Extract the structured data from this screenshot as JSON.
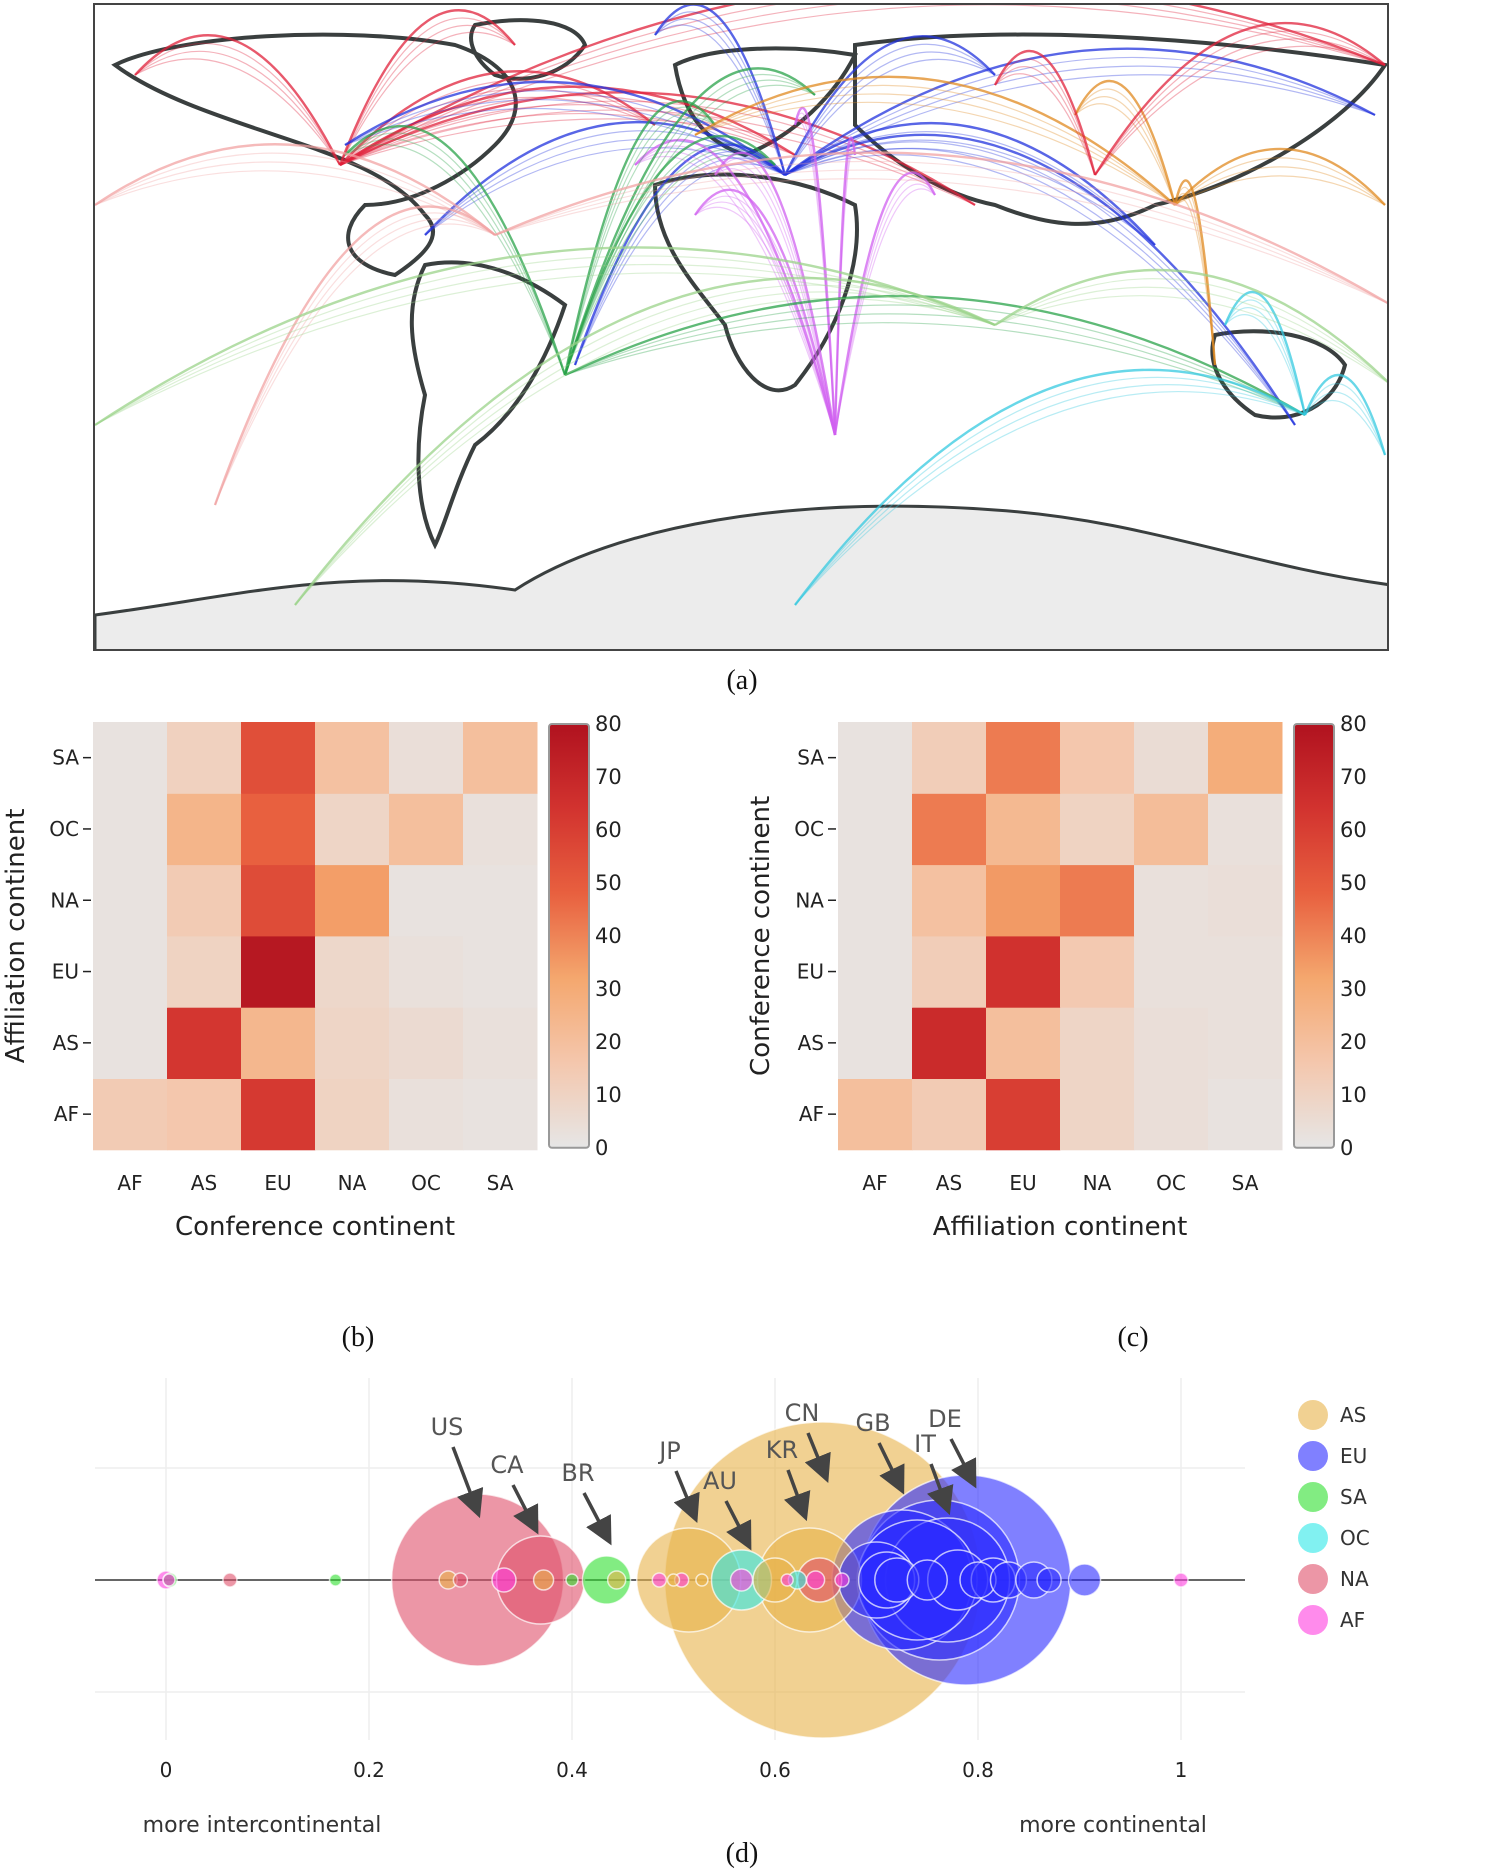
{
  "captions": {
    "a": "(a)",
    "b": "(b)",
    "c": "(c)",
    "d": "(d)"
  },
  "map": {
    "route_colors": [
      "#e0223b",
      "#2233dd",
      "#d060f0",
      "#2aa34a",
      "#e08a20",
      "#35c9e0",
      "#f2a3a3",
      "#9bd38a"
    ],
    "land_outline_color": "#3a3f3f",
    "antarctica_fill": "#ececec"
  },
  "colorscale": {
    "stops": [
      "#e6e6e6",
      "#f4c7ad",
      "#f4a76e",
      "#e8603f",
      "#d2332f",
      "#b0121f"
    ],
    "ticks": [
      "0",
      "10",
      "20",
      "30",
      "40",
      "50",
      "60",
      "70",
      "80"
    ],
    "max": 80
  },
  "chart_data": [
    {
      "type": "heatmap",
      "panel": "b",
      "xlabel": "Conference continent",
      "ylabel": "Affiliation continent",
      "x_categories": [
        "AF",
        "AS",
        "EU",
        "NA",
        "OC",
        "SA"
      ],
      "y_categories": [
        "AF",
        "AS",
        "EU",
        "NA",
        "OC",
        "SA"
      ],
      "z": [
        [
          14,
          16,
          62,
          10,
          3,
          2
        ],
        [
          2,
          63,
          24,
          9,
          6,
          3
        ],
        [
          2,
          10,
          77,
          8,
          3,
          2
        ],
        [
          2,
          14,
          55,
          34,
          2,
          2
        ],
        [
          2,
          25,
          48,
          9,
          20,
          3
        ],
        [
          2,
          11,
          54,
          19,
          4,
          20
        ]
      ],
      "zlim": [
        0,
        80
      ]
    },
    {
      "type": "heatmap",
      "panel": "c",
      "xlabel": "Affiliation continent",
      "ylabel": "Conference continent",
      "x_categories": [
        "AF",
        "AS",
        "EU",
        "NA",
        "OC",
        "SA"
      ],
      "y_categories": [
        "AF",
        "AS",
        "EU",
        "NA",
        "OC",
        "SA"
      ],
      "z": [
        [
          20,
          14,
          60,
          9,
          4,
          2
        ],
        [
          2,
          68,
          20,
          9,
          4,
          3
        ],
        [
          2,
          13,
          65,
          15,
          3,
          3
        ],
        [
          2,
          19,
          35,
          42,
          3,
          4
        ],
        [
          2,
          42,
          23,
          10,
          21,
          3
        ],
        [
          2,
          13,
          42,
          16,
          5,
          29
        ]
      ],
      "zlim": [
        0,
        80
      ]
    },
    {
      "type": "scatter",
      "panel": "d",
      "x_ticks": [
        "0",
        "0.2",
        "0.4",
        "0.6",
        "0.8",
        "1"
      ],
      "xlim": [
        -0.07,
        1.07
      ],
      "bottom_left_label": "more intercontinental",
      "bottom_right_label": "more continental",
      "legend": [
        {
          "name": "AS",
          "color": "#e8b34a"
        },
        {
          "name": "EU",
          "color": "#2b2bff"
        },
        {
          "name": "SA",
          "color": "#2fe02f"
        },
        {
          "name": "OC",
          "color": "#2de8e8"
        },
        {
          "name": "NA",
          "color": "#e0506a"
        },
        {
          "name": "AF",
          "color": "#ff3ee0"
        }
      ],
      "annotations": [
        {
          "text": "US",
          "x": 0.307
        },
        {
          "text": "CA",
          "x": 0.369
        },
        {
          "text": "BR",
          "x": 0.434
        },
        {
          "text": "JP",
          "x": 0.515
        },
        {
          "text": "AU",
          "x": 0.567
        },
        {
          "text": "KR",
          "x": 0.634
        },
        {
          "text": "CN",
          "x": 0.647
        },
        {
          "text": "GB",
          "x": 0.725
        },
        {
          "text": "IT",
          "x": 0.762
        },
        {
          "text": "DE",
          "x": 0.788
        }
      ],
      "points": [
        {
          "x": 0.0,
          "r": 9,
          "c": "AF"
        },
        {
          "x": 0.004,
          "r": 7,
          "c": "SA"
        },
        {
          "x": 0.003,
          "r": 6,
          "c": "AF"
        },
        {
          "x": 0.063,
          "r": 7,
          "c": "NA"
        },
        {
          "x": 0.167,
          "r": 6,
          "c": "SA"
        },
        {
          "x": 0.307,
          "r": 86,
          "c": "NA"
        },
        {
          "x": 0.369,
          "r": 44,
          "c": "NA"
        },
        {
          "x": 0.278,
          "r": 9,
          "c": "AS"
        },
        {
          "x": 0.29,
          "r": 7,
          "c": "NA"
        },
        {
          "x": 0.333,
          "r": 12,
          "c": "AF"
        },
        {
          "x": 0.372,
          "r": 10,
          "c": "AS"
        },
        {
          "x": 0.4,
          "r": 6,
          "c": "SA"
        },
        {
          "x": 0.434,
          "r": 24,
          "c": "SA"
        },
        {
          "x": 0.444,
          "r": 9,
          "c": "AS"
        },
        {
          "x": 0.486,
          "r": 7,
          "c": "AF"
        },
        {
          "x": 0.5,
          "r": 6,
          "c": "AS"
        },
        {
          "x": 0.508,
          "r": 7,
          "c": "AF"
        },
        {
          "x": 0.515,
          "r": 52,
          "c": "AS"
        },
        {
          "x": 0.528,
          "r": 6,
          "c": "AS"
        },
        {
          "x": 0.567,
          "r": 30,
          "c": "OC"
        },
        {
          "x": 0.567,
          "r": 11,
          "c": "AF"
        },
        {
          "x": 0.647,
          "r": 158,
          "c": "AS"
        },
        {
          "x": 0.634,
          "r": 52,
          "c": "AS"
        },
        {
          "x": 0.6,
          "r": 22,
          "c": "AS"
        },
        {
          "x": 0.612,
          "r": 6,
          "c": "AF"
        },
        {
          "x": 0.622,
          "r": 9,
          "c": "OC"
        },
        {
          "x": 0.644,
          "r": 22,
          "c": "NA"
        },
        {
          "x": 0.64,
          "r": 9,
          "c": "AF"
        },
        {
          "x": 0.666,
          "r": 7,
          "c": "AF"
        },
        {
          "x": 0.788,
          "r": 105,
          "c": "EU"
        },
        {
          "x": 0.762,
          "r": 80,
          "c": "EU"
        },
        {
          "x": 0.725,
          "r": 70,
          "c": "EU"
        },
        {
          "x": 0.74,
          "r": 60,
          "c": "EU"
        },
        {
          "x": 0.77,
          "r": 62,
          "c": "EU"
        },
        {
          "x": 0.7,
          "r": 38,
          "c": "EU"
        },
        {
          "x": 0.71,
          "r": 28,
          "c": "EU"
        },
        {
          "x": 0.72,
          "r": 22,
          "c": "EU"
        },
        {
          "x": 0.75,
          "r": 20,
          "c": "EU"
        },
        {
          "x": 0.78,
          "r": 30,
          "c": "EU"
        },
        {
          "x": 0.8,
          "r": 18,
          "c": "EU"
        },
        {
          "x": 0.815,
          "r": 22,
          "c": "EU"
        },
        {
          "x": 0.83,
          "r": 18,
          "c": "EU"
        },
        {
          "x": 0.855,
          "r": 18,
          "c": "EU"
        },
        {
          "x": 0.87,
          "r": 12,
          "c": "EU"
        },
        {
          "x": 0.905,
          "r": 16,
          "c": "EU"
        },
        {
          "x": 1.0,
          "r": 7,
          "c": "AF"
        }
      ]
    }
  ]
}
